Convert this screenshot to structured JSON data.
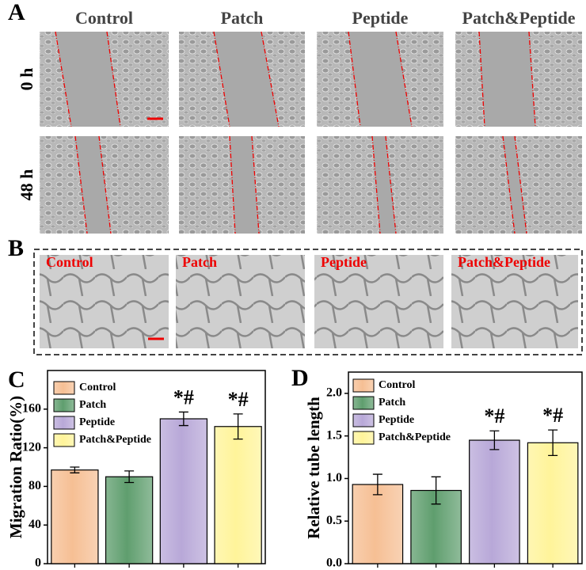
{
  "panel_a": {
    "label": "A",
    "columns": [
      "Control",
      "Patch",
      "Peptide",
      "Patch&Peptide"
    ],
    "rows": [
      "0 h",
      "48 h"
    ]
  },
  "panel_b": {
    "label": "B",
    "columns": [
      "Control",
      "Patch",
      "Peptide",
      "Patch&Peptide"
    ]
  },
  "chart_data": [
    {
      "type": "bar",
      "panel": "C",
      "ylabel": "Migration Ratio(%)",
      "categories": [
        "Control",
        "Patch",
        "Peptide",
        "Patch&Peptide"
      ],
      "values": [
        97,
        90,
        150,
        142
      ],
      "errors": [
        3,
        6,
        7,
        13
      ],
      "colors": [
        "#f6bf94",
        "#5f9e6e",
        "#b8a8d8",
        "#fff49a"
      ],
      "annotations": [
        null,
        null,
        "*#",
        "*#"
      ],
      "ylim": [
        0,
        200
      ],
      "yticks": [
        0,
        40,
        80,
        120,
        160
      ]
    },
    {
      "type": "bar",
      "panel": "D",
      "ylabel": "Relative tube length",
      "categories": [
        "Control",
        "Patch",
        "Peptide",
        "Patch&Peptide"
      ],
      "values": [
        0.93,
        0.86,
        1.45,
        1.42
      ],
      "errors": [
        0.12,
        0.16,
        0.11,
        0.15
      ],
      "colors": [
        "#f6bf94",
        "#5f9e6e",
        "#b8a8d8",
        "#fff49a"
      ],
      "annotations": [
        null,
        null,
        "*#",
        "*#"
      ],
      "ylim": [
        0,
        2.25
      ],
      "yticks": [
        {
          "value": 0,
          "label": "0.0"
        },
        0.5,
        {
          "value": 1,
          "label": "1.0"
        },
        1.5,
        {
          "value": 2,
          "label": "2.0"
        }
      ]
    }
  ]
}
